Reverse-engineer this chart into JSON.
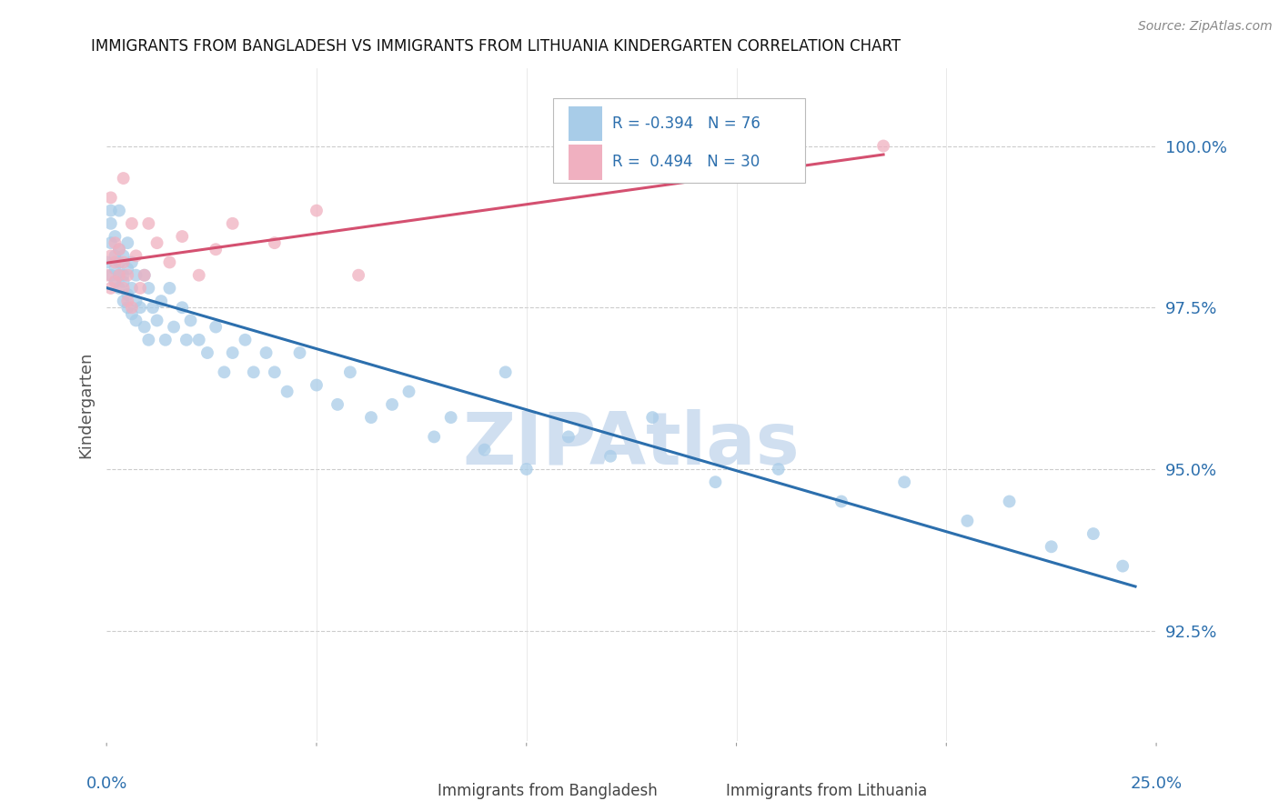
{
  "title": "IMMIGRANTS FROM BANGLADESH VS IMMIGRANTS FROM LITHUANIA KINDERGARTEN CORRELATION CHART",
  "source": "Source: ZipAtlas.com",
  "ylabel": "Kindergarten",
  "xlim": [
    0.0,
    0.25
  ],
  "ylim": [
    90.8,
    101.2
  ],
  "legend_R_bangladesh": "-0.394",
  "legend_N_bangladesh": "76",
  "legend_R_lithuania": "0.494",
  "legend_N_lithuania": "30",
  "color_bangladesh": "#a8cce8",
  "color_lithuania": "#f0b0c0",
  "color_trendline_bangladesh": "#2c6fad",
  "color_trendline_lithuania": "#d45070",
  "color_axis_labels": "#2c6fad",
  "watermark_text": "ZIPAtlas",
  "watermark_color": "#d0dff0",
  "ytick_vals": [
    92.5,
    95.0,
    97.5,
    100.0
  ],
  "bd_x": [
    0.0,
    0.001,
    0.001,
    0.001,
    0.001,
    0.002,
    0.002,
    0.002,
    0.002,
    0.003,
    0.003,
    0.003,
    0.003,
    0.003,
    0.004,
    0.004,
    0.004,
    0.004,
    0.005,
    0.005,
    0.005,
    0.005,
    0.006,
    0.006,
    0.006,
    0.007,
    0.007,
    0.007,
    0.008,
    0.009,
    0.009,
    0.01,
    0.01,
    0.011,
    0.012,
    0.013,
    0.014,
    0.015,
    0.016,
    0.018,
    0.019,
    0.02,
    0.022,
    0.024,
    0.026,
    0.028,
    0.03,
    0.033,
    0.035,
    0.038,
    0.04,
    0.043,
    0.046,
    0.05,
    0.055,
    0.058,
    0.063,
    0.068,
    0.072,
    0.078,
    0.082,
    0.09,
    0.095,
    0.1,
    0.11,
    0.12,
    0.13,
    0.145,
    0.16,
    0.175,
    0.19,
    0.205,
    0.215,
    0.225,
    0.235,
    0.242
  ],
  "bd_y": [
    98.2,
    98.5,
    98.0,
    99.0,
    98.8,
    98.3,
    97.9,
    98.6,
    98.1,
    98.4,
    97.8,
    98.2,
    99.0,
    98.0,
    97.9,
    98.3,
    97.6,
    98.0,
    98.1,
    97.7,
    98.5,
    97.5,
    97.8,
    98.2,
    97.4,
    97.6,
    98.0,
    97.3,
    97.5,
    98.0,
    97.2,
    97.8,
    97.0,
    97.5,
    97.3,
    97.6,
    97.0,
    97.8,
    97.2,
    97.5,
    97.0,
    97.3,
    97.0,
    96.8,
    97.2,
    96.5,
    96.8,
    97.0,
    96.5,
    96.8,
    96.5,
    96.2,
    96.8,
    96.3,
    96.0,
    96.5,
    95.8,
    96.0,
    96.2,
    95.5,
    95.8,
    95.3,
    96.5,
    95.0,
    95.5,
    95.2,
    95.8,
    94.8,
    95.0,
    94.5,
    94.8,
    94.2,
    94.5,
    93.8,
    94.0,
    93.5
  ],
  "lt_x": [
    0.0,
    0.001,
    0.001,
    0.001,
    0.002,
    0.002,
    0.002,
    0.003,
    0.003,
    0.004,
    0.004,
    0.004,
    0.005,
    0.005,
    0.006,
    0.006,
    0.007,
    0.008,
    0.009,
    0.01,
    0.012,
    0.015,
    0.018,
    0.022,
    0.026,
    0.03,
    0.04,
    0.05,
    0.06,
    0.185
  ],
  "lt_y": [
    98.0,
    98.3,
    97.8,
    99.2,
    98.2,
    97.9,
    98.5,
    98.0,
    98.4,
    97.8,
    98.2,
    99.5,
    98.0,
    97.6,
    98.8,
    97.5,
    98.3,
    97.8,
    98.0,
    98.8,
    98.5,
    98.2,
    98.6,
    98.0,
    98.4,
    98.8,
    98.5,
    99.0,
    98.0,
    100.0
  ]
}
